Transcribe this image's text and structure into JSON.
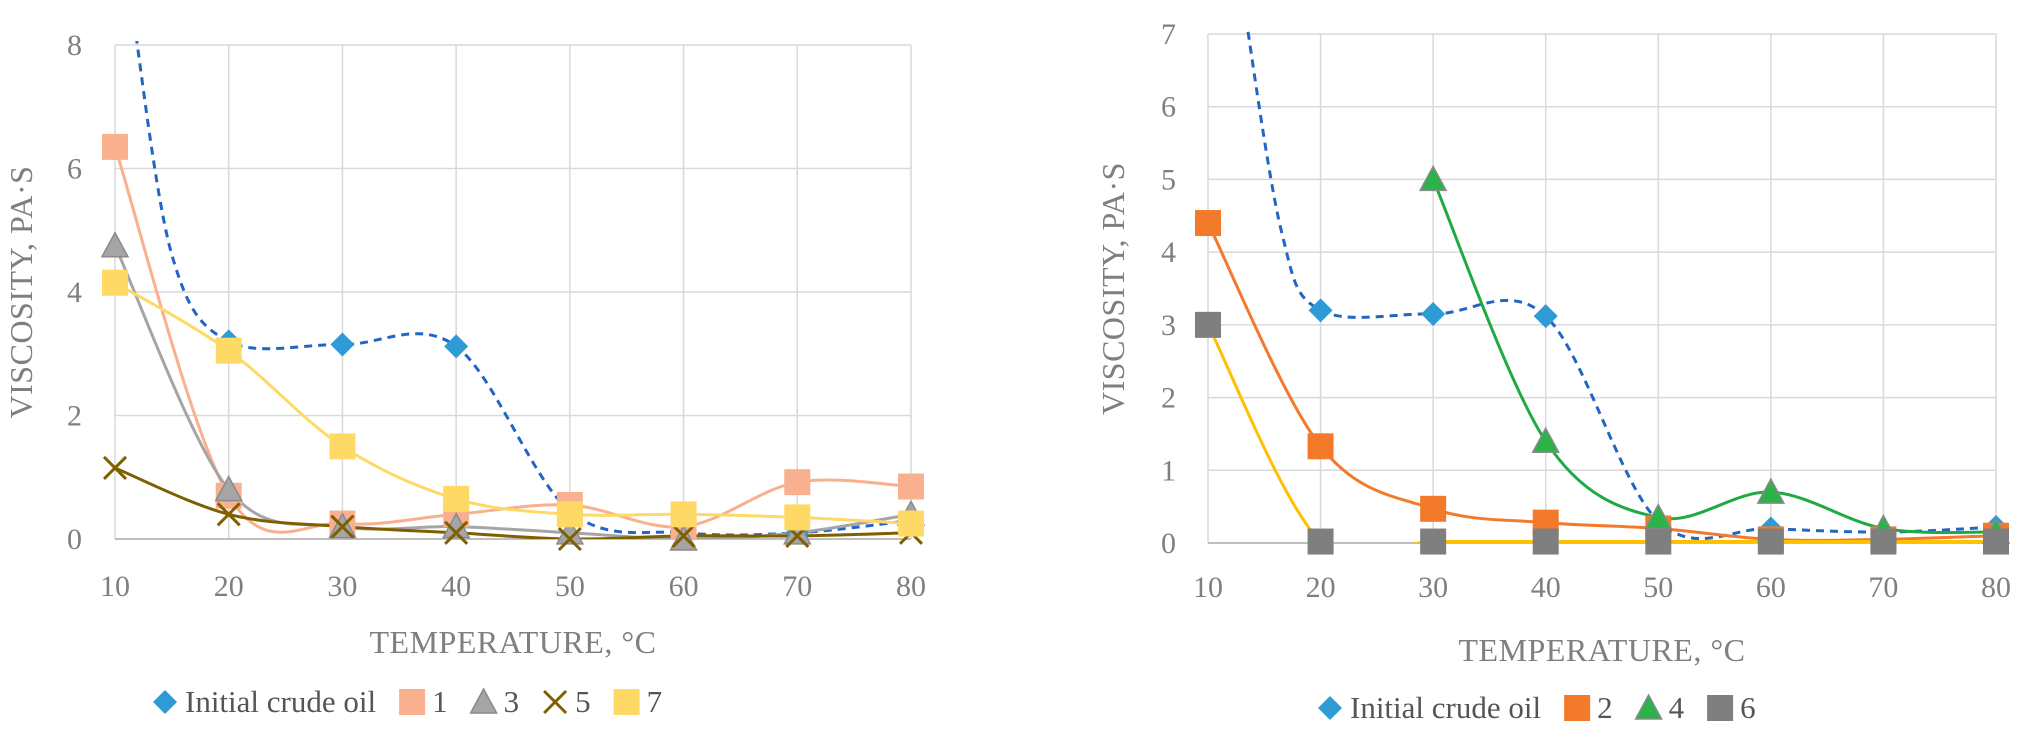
{
  "chart_data": [
    {
      "type": "scatter",
      "xlabel": "TEMPERATURE, °C",
      "ylabel": "VISCOSITY, PA·S",
      "xlim": [
        10,
        80
      ],
      "ylim": [
        0,
        8
      ],
      "xticks": [
        10,
        20,
        30,
        40,
        50,
        60,
        70,
        80
      ],
      "yticks": [
        0,
        2,
        4,
        6,
        8
      ],
      "grid": true,
      "legend_position": "bottom",
      "series": [
        {
          "name": "Initial crude oil",
          "marker": "diamond",
          "color": "#2e9bd6",
          "line": "dashed",
          "line_color": "#2166c4",
          "x": [
            20,
            30,
            40,
            50,
            60,
            70,
            80
          ],
          "y": [
            3.2,
            3.15,
            3.12,
            0.45,
            0.1,
            0.1,
            0.3
          ]
        },
        {
          "name": "1",
          "marker": "square",
          "color": "#f8b08f",
          "line": "solid",
          "line_color": "#f8b08f",
          "x": [
            10,
            20,
            30,
            40,
            50,
            60,
            70,
            80
          ],
          "y": [
            6.35,
            0.7,
            0.25,
            0.4,
            0.55,
            0.2,
            0.92,
            0.85
          ]
        },
        {
          "name": "3",
          "marker": "triangle",
          "color": "#a5a5a5",
          "line": "solid",
          "line_color": "#a5a5a5",
          "x": [
            10,
            20,
            30,
            40,
            50,
            60,
            70,
            80
          ],
          "y": [
            4.75,
            0.8,
            0.2,
            0.2,
            0.1,
            0.0,
            0.1,
            0.4
          ]
        },
        {
          "name": "5",
          "marker": "x",
          "color": "#7f5f00",
          "line": "solid",
          "line_color": "#7f5f00",
          "x": [
            10,
            20,
            30,
            40,
            50,
            60,
            70,
            80
          ],
          "y": [
            1.15,
            0.4,
            0.2,
            0.1,
            0.0,
            0.05,
            0.05,
            0.1
          ]
        },
        {
          "name": "7",
          "marker": "square",
          "color": "#ffd966",
          "line": "solid",
          "line_color": "#ffd966",
          "x": [
            10,
            20,
            30,
            40,
            50,
            60,
            70,
            80
          ],
          "y": [
            4.15,
            3.05,
            1.5,
            0.65,
            0.4,
            0.4,
            0.35,
            0.25
          ]
        }
      ]
    },
    {
      "type": "scatter",
      "xlabel": "TEMPERATURE, °C",
      "ylabel": "VISCOSITY, PA·S",
      "xlim": [
        10,
        80
      ],
      "ylim": [
        0,
        7
      ],
      "xticks": [
        10,
        20,
        30,
        40,
        50,
        60,
        70,
        80
      ],
      "yticks": [
        0,
        1,
        2,
        3,
        4,
        5,
        6,
        7
      ],
      "grid": true,
      "legend_position": "bottom",
      "series": [
        {
          "name": "Initial crude oil",
          "marker": "diamond",
          "color": "#2e9bd6",
          "line": "dashed",
          "line_color": "#2166c4",
          "x": [
            20,
            30,
            40,
            50,
            60,
            70,
            80
          ],
          "y": [
            3.2,
            3.15,
            3.12,
            0.3,
            0.2,
            0.15,
            0.22
          ]
        },
        {
          "name": "2",
          "marker": "square",
          "color": "#f47a2b",
          "line": "solid",
          "line_color": "#f47a2b",
          "x": [
            10,
            20,
            30,
            40,
            50,
            60,
            70,
            80
          ],
          "y": [
            4.4,
            1.33,
            0.47,
            0.28,
            0.2,
            0.05,
            0.05,
            0.1
          ]
        },
        {
          "name": "4",
          "marker": "triangle",
          "color": "#2bb34a",
          "line": "solid",
          "line_color": "#1faa44",
          "x": [
            30,
            40,
            50,
            60,
            70,
            80
          ],
          "y": [
            5.0,
            1.4,
            0.35,
            0.7,
            0.2,
            0.15
          ]
        },
        {
          "name": "6",
          "marker": "square",
          "color": "#7f7f7f",
          "line": "solid",
          "line_color": "#ffc000",
          "x": [
            10,
            20,
            30,
            40,
            50,
            60,
            70,
            80
          ],
          "y": [
            3.0,
            0.02,
            0.02,
            0.02,
            0.02,
            0.02,
            0.02,
            0.02
          ]
        }
      ]
    }
  ]
}
